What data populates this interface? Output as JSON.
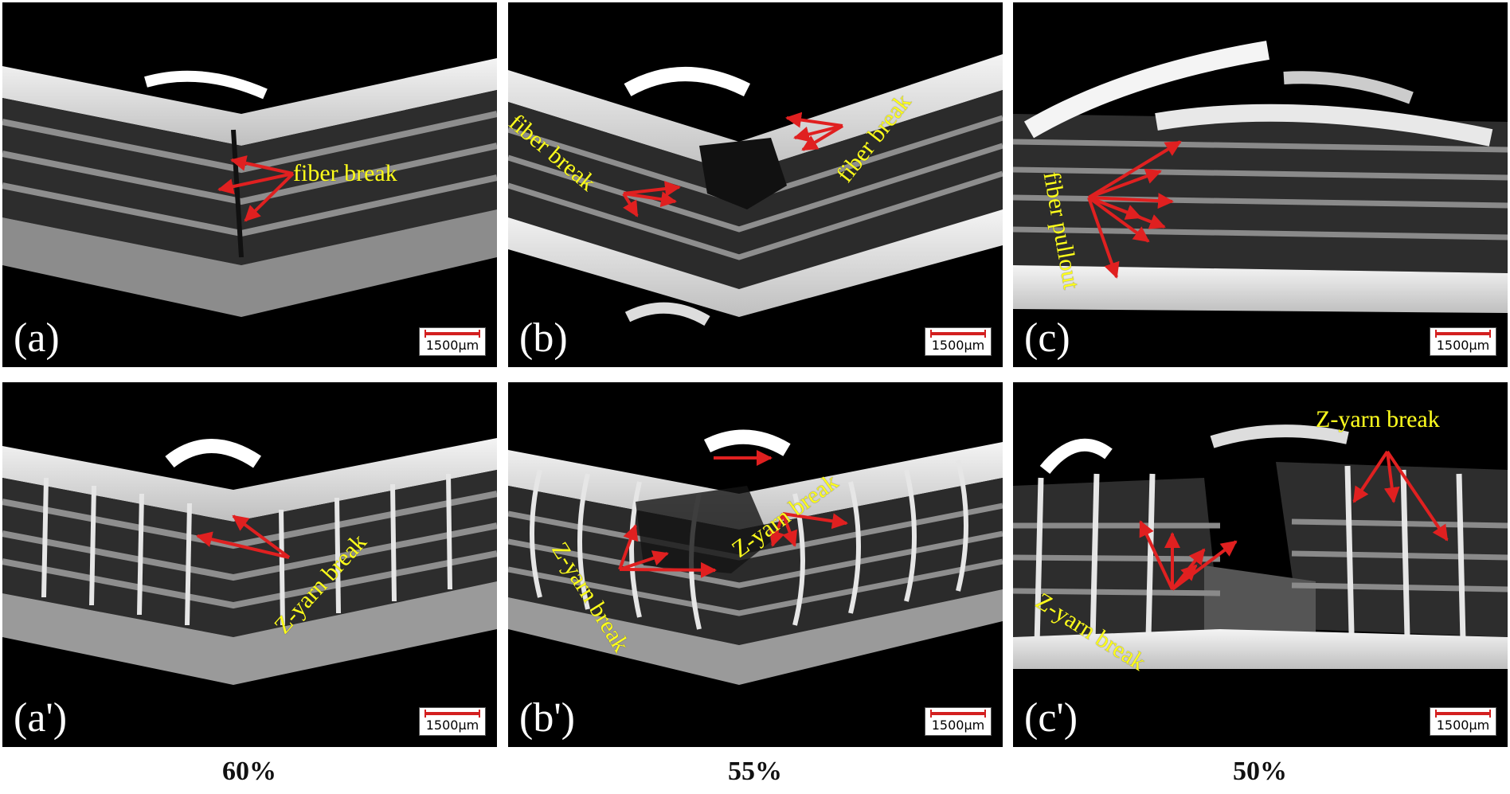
{
  "figure": {
    "columns": [
      {
        "label": "60%"
      },
      {
        "label": "55%"
      },
      {
        "label": "50%"
      }
    ],
    "panels": [
      {
        "id": "a",
        "label": "(a)",
        "scale": "1500µm",
        "annotations": [
          "fiber break"
        ]
      },
      {
        "id": "b",
        "label": "(b)",
        "scale": "1500µm",
        "annotations": [
          "fiber break",
          "fiber break"
        ]
      },
      {
        "id": "c",
        "label": "(c)",
        "scale": "1500µm",
        "annotations": [
          "fiber pullout"
        ]
      },
      {
        "id": "a2",
        "label": "(a')",
        "scale": "1500µm",
        "annotations": [
          "Z-yarn break"
        ]
      },
      {
        "id": "b2",
        "label": "(b')",
        "scale": "1500µm",
        "annotations": [
          "Z-yarn break",
          "Z-yarn break"
        ]
      },
      {
        "id": "c2",
        "label": "(c')",
        "scale": "1500µm",
        "annotations": [
          "Z-yarn break",
          "Z-yarn break"
        ]
      }
    ],
    "colors": {
      "annotation_text": "#ffff1a",
      "arrows": "#e02020",
      "scale_bar": "#d31f1f",
      "background": "#000000"
    }
  }
}
